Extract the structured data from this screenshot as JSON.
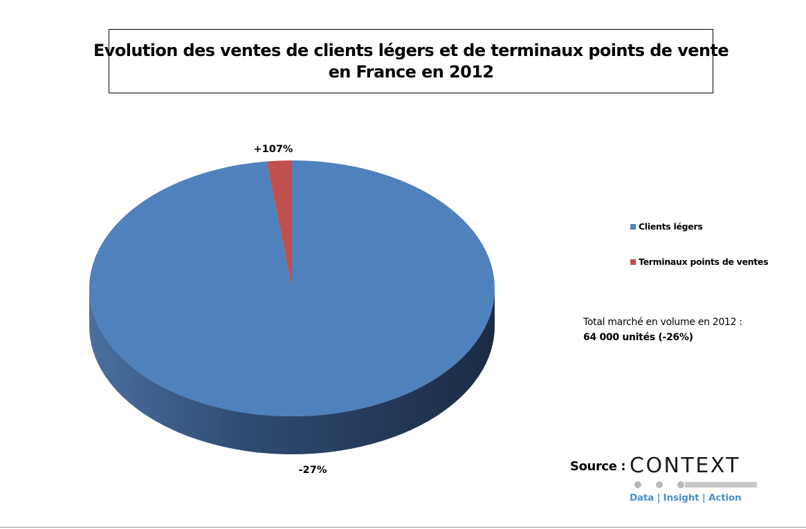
{
  "title_lines": [
    "Evolution des ventes de clients légers et de terminaux points de vente",
    "en France en 2012"
  ],
  "chart_data": {
    "type": "pie",
    "style": "3d",
    "title": "Evolution des ventes de clients légers et de terminaux points de vente en France en 2012",
    "slices": [
      {
        "label": "Clients légers",
        "share_percent": 98,
        "data_label": "-27%",
        "color": "#4f81bd"
      },
      {
        "label": "Terminaux points de ventes",
        "share_percent": 2,
        "data_label": "+107%",
        "color": "#c0504d"
      }
    ],
    "legend_position": "right"
  },
  "legend": {
    "items": [
      {
        "label": "Clients légers",
        "color": "#4f81bd"
      },
      {
        "label": "Terminaux points de ventes",
        "color": "#c0504d"
      }
    ]
  },
  "total": {
    "label": "Total marché en volume en 2012 :",
    "value": "64 000 unités (-26%)"
  },
  "source": {
    "label": "Source :",
    "logo_text": "CONTEXT",
    "logo_tagline": "Data | Insight | Action"
  }
}
